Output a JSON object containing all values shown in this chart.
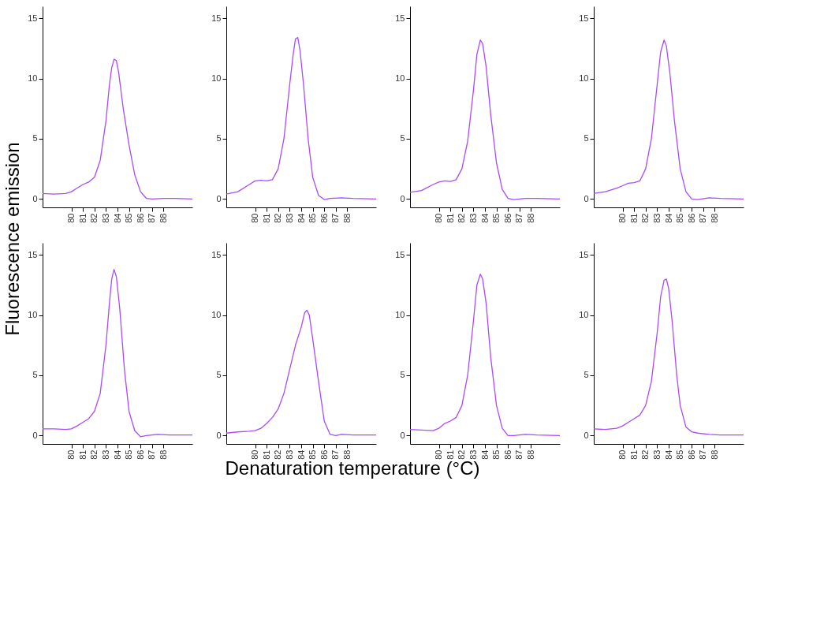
{
  "chart_data": [
    {
      "type": "line",
      "ylabel": "Fluorescence emission",
      "xlabel": "Denaturation temperature (°C)",
      "xlim": [
        77.5,
        90.5
      ],
      "ylim": [
        -0.7,
        16
      ],
      "xticks": [
        80,
        81,
        82,
        83,
        84,
        85,
        86,
        87,
        88
      ],
      "yticks": [
        0,
        5,
        10,
        15
      ],
      "x": [
        77.5,
        78.5,
        79.5,
        80,
        80.5,
        81,
        81.5,
        82,
        82.5,
        83,
        83.3,
        83.5,
        83.7,
        83.9,
        84.1,
        84.5,
        85,
        85.5,
        86,
        86.5,
        87,
        88,
        89,
        90.5
      ],
      "series": [
        {
          "color": "#a94cf5",
          "values": [
            0.45,
            0.4,
            0.45,
            0.6,
            0.9,
            1.2,
            1.4,
            1.8,
            3.2,
            6.5,
            9.5,
            10.9,
            11.6,
            11.5,
            10.5,
            7.5,
            4.5,
            2.0,
            0.6,
            0.05,
            0.0,
            0.05,
            0.05,
            0.0
          ]
        }
      ]
    },
    {
      "type": "line",
      "xlim": [
        77.5,
        90.5
      ],
      "ylim": [
        -0.7,
        16
      ],
      "xticks": [
        80,
        81,
        82,
        83,
        84,
        85,
        86,
        87,
        88
      ],
      "yticks": [
        0,
        5,
        10,
        15
      ],
      "x": [
        77.5,
        78.5,
        79.5,
        80,
        80.5,
        81,
        81.5,
        82,
        82.5,
        83,
        83.3,
        83.5,
        83.7,
        83.9,
        84.2,
        84.6,
        85,
        85.5,
        86,
        86.5,
        87.5,
        88.5,
        90.5
      ],
      "series": [
        {
          "color": "#a94cf5",
          "values": [
            0.4,
            0.6,
            1.2,
            1.5,
            1.55,
            1.5,
            1.6,
            2.5,
            5.0,
            9.5,
            12.0,
            13.3,
            13.4,
            12.3,
            9.5,
            5.0,
            1.8,
            0.3,
            -0.05,
            0.05,
            0.1,
            0.05,
            0.0
          ]
        }
      ]
    },
    {
      "type": "line",
      "xlim": [
        77.5,
        90.5
      ],
      "ylim": [
        -0.7,
        16
      ],
      "xticks": [
        80,
        81,
        82,
        83,
        84,
        85,
        86,
        87,
        88
      ],
      "yticks": [
        0,
        5,
        10,
        15
      ],
      "x": [
        77.5,
        78.5,
        79.5,
        80,
        80.5,
        81,
        81.5,
        82,
        82.5,
        83,
        83.3,
        83.6,
        83.8,
        84.1,
        84.5,
        85,
        85.5,
        86,
        86.5,
        87.5,
        88.5,
        90.5
      ],
      "series": [
        {
          "color": "#a94cf5",
          "values": [
            0.55,
            0.7,
            1.2,
            1.4,
            1.5,
            1.45,
            1.6,
            2.5,
            4.8,
            9.0,
            12.0,
            13.2,
            12.9,
            11.0,
            7.0,
            3.0,
            0.8,
            0.05,
            -0.05,
            0.05,
            0.05,
            0.0
          ]
        }
      ]
    },
    {
      "type": "line",
      "xlim": [
        77.5,
        90.5
      ],
      "ylim": [
        -0.7,
        16
      ],
      "xticks": [
        80,
        81,
        82,
        83,
        84,
        85,
        86,
        87,
        88
      ],
      "yticks": [
        0,
        5,
        10,
        15
      ],
      "x": [
        77.5,
        78.5,
        79.5,
        80,
        80.5,
        81,
        81.5,
        82,
        82.5,
        83,
        83.3,
        83.6,
        83.8,
        84.1,
        84.5,
        85,
        85.5,
        86,
        86.5,
        87.5,
        88.5,
        90.5
      ],
      "series": [
        {
          "color": "#a94cf5",
          "values": [
            0.45,
            0.6,
            0.9,
            1.1,
            1.3,
            1.35,
            1.5,
            2.5,
            5.0,
            9.5,
            12.2,
            13.2,
            12.7,
            10.5,
            6.5,
            2.5,
            0.6,
            0.0,
            -0.05,
            0.1,
            0.05,
            0.0
          ]
        }
      ]
    },
    {
      "type": "line",
      "xlim": [
        77.5,
        90.5
      ],
      "ylim": [
        -0.7,
        16
      ],
      "xticks": [
        80,
        81,
        82,
        83,
        84,
        85,
        86,
        87,
        88
      ],
      "yticks": [
        0,
        5,
        10,
        15
      ],
      "x": [
        77.5,
        78.5,
        79.5,
        80,
        80.5,
        81,
        81.5,
        82,
        82.5,
        83,
        83.3,
        83.5,
        83.7,
        83.9,
        84.2,
        84.6,
        85,
        85.5,
        86,
        86.5,
        87.5,
        88.5,
        90.5
      ],
      "series": [
        {
          "color": "#a94cf5",
          "values": [
            0.55,
            0.55,
            0.5,
            0.55,
            0.8,
            1.1,
            1.4,
            2.0,
            3.5,
            7.5,
            11.0,
            13.0,
            13.8,
            13.2,
            10.5,
            5.5,
            2.0,
            0.4,
            -0.1,
            0.0,
            0.1,
            0.05,
            0.05
          ]
        }
      ]
    },
    {
      "type": "line",
      "xlim": [
        77.5,
        90.5
      ],
      "ylim": [
        -0.7,
        16
      ],
      "xticks": [
        80,
        81,
        82,
        83,
        84,
        85,
        86,
        87,
        88
      ],
      "yticks": [
        0,
        5,
        10,
        15
      ],
      "x": [
        77.5,
        78.5,
        79.5,
        80,
        80.5,
        81,
        81.5,
        82,
        82.5,
        83,
        83.5,
        84,
        84.3,
        84.5,
        84.7,
        85,
        85.5,
        86,
        86.5,
        87,
        87.5,
        88.5,
        90.5
      ],
      "series": [
        {
          "color": "#a94cf5",
          "values": [
            0.2,
            0.3,
            0.35,
            0.4,
            0.6,
            1.0,
            1.5,
            2.2,
            3.5,
            5.5,
            7.5,
            9.0,
            10.2,
            10.4,
            10.0,
            8.0,
            4.5,
            1.2,
            0.1,
            0.0,
            0.1,
            0.05,
            0.05
          ]
        }
      ]
    },
    {
      "type": "line",
      "xlim": [
        77.5,
        90.5
      ],
      "ylim": [
        -0.7,
        16
      ],
      "xticks": [
        80,
        81,
        82,
        83,
        84,
        85,
        86,
        87,
        88
      ],
      "yticks": [
        0,
        5,
        10,
        15
      ],
      "x": [
        77.5,
        78.5,
        79.5,
        80,
        80.5,
        81,
        81.5,
        82,
        82.5,
        83,
        83.3,
        83.6,
        83.8,
        84.1,
        84.5,
        85,
        85.5,
        86,
        86.5,
        87.5,
        88.5,
        90.5
      ],
      "series": [
        {
          "color": "#a94cf5",
          "values": [
            0.5,
            0.45,
            0.4,
            0.6,
            1.0,
            1.2,
            1.5,
            2.5,
            5.0,
            9.5,
            12.5,
            13.4,
            13.0,
            11.0,
            6.5,
            2.5,
            0.6,
            0.0,
            0.0,
            0.1,
            0.05,
            0.0
          ]
        }
      ]
    },
    {
      "type": "line",
      "xlim": [
        77.5,
        90.5
      ],
      "ylim": [
        -0.7,
        16
      ],
      "xticks": [
        80,
        81,
        82,
        83,
        84,
        85,
        86,
        87,
        88
      ],
      "yticks": [
        0,
        5,
        10,
        15
      ],
      "x": [
        77.5,
        78.5,
        79.5,
        80,
        80.5,
        81,
        81.5,
        82,
        82.5,
        83,
        83.3,
        83.6,
        83.8,
        84,
        84.3,
        84.7,
        85,
        85.5,
        86,
        86.5,
        87.5,
        88.5,
        90.5
      ],
      "series": [
        {
          "color": "#a94cf5",
          "values": [
            0.55,
            0.5,
            0.6,
            0.8,
            1.1,
            1.4,
            1.7,
            2.5,
            4.5,
            8.5,
            11.5,
            12.9,
            13.0,
            12.2,
            9.5,
            5.0,
            2.5,
            0.7,
            0.3,
            0.2,
            0.1,
            0.05,
            0.05
          ]
        }
      ]
    }
  ]
}
